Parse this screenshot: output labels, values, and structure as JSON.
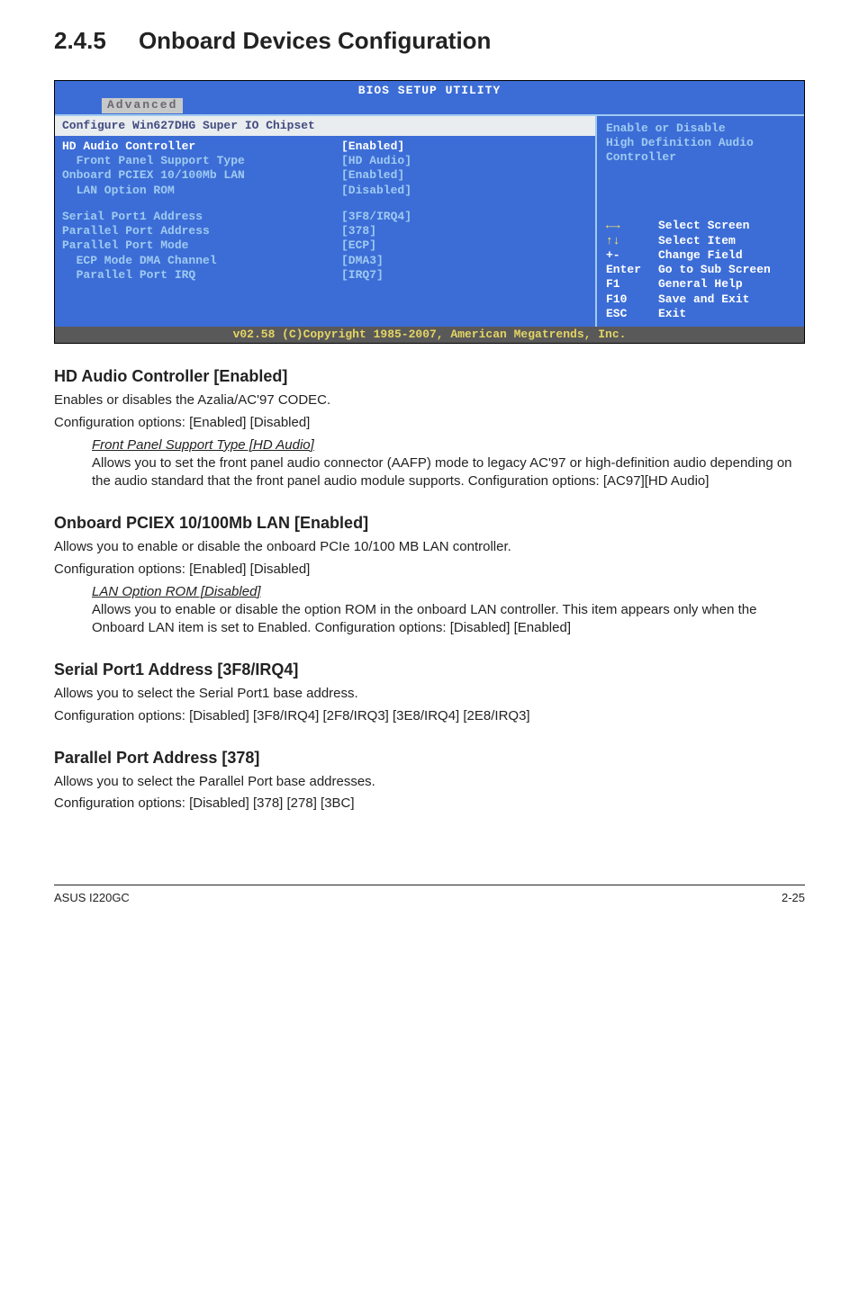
{
  "section": {
    "number": "2.4.5",
    "title": "Onboard Devices Configuration"
  },
  "bios": {
    "header_title": "BIOS SETUP UTILITY",
    "tab_label": "Advanced",
    "chipset_line": "Configure Win627DHG Super IO Chipset",
    "rows": [
      {
        "key": "HD Audio Controller",
        "val": "[Enabled]",
        "selected": true,
        "indent": 0
      },
      {
        "key": "Front Panel Support Type",
        "val": "[HD Audio]",
        "selected": false,
        "indent": 1
      },
      {
        "key": "Onboard PCIEX 10/100Mb LAN",
        "val": "[Enabled]",
        "selected": false,
        "indent": 0
      },
      {
        "key": "LAN Option ROM",
        "val": "[Disabled]",
        "selected": false,
        "indent": 1
      }
    ],
    "rows2": [
      {
        "key": "Serial Port1 Address",
        "val": "[3F8/IRQ4]",
        "indent": 0
      },
      {
        "key": "Parallel Port Address",
        "val": "[378]",
        "indent": 0
      },
      {
        "key": "Parallel Port Mode",
        "val": "[ECP]",
        "indent": 0
      },
      {
        "key": "ECP Mode DMA Channel",
        "val": "[DMA3]",
        "indent": 1
      },
      {
        "key": "Parallel Port IRQ",
        "val": "[IRQ7]",
        "indent": 1
      }
    ],
    "help_text_1": "Enable or Disable",
    "help_text_2": "High Definition Audio",
    "help_text_3": "Controller",
    "nav": [
      {
        "key_glyph": "lr",
        "action": "Select Screen"
      },
      {
        "key_glyph": "ud",
        "action": "Select Item"
      },
      {
        "key": "+-",
        "action": "Change Field"
      },
      {
        "key": "Enter",
        "action": "Go to Sub Screen"
      },
      {
        "key": "F1",
        "action": "General Help"
      },
      {
        "key": "F10",
        "action": "Save and Exit"
      },
      {
        "key": "ESC",
        "action": "Exit"
      }
    ],
    "footer": "v02.58 (C)Copyright 1985-2007, American Megatrends, Inc."
  },
  "sections": {
    "hd_audio": {
      "heading": "HD Audio Controller [Enabled]",
      "p1": "Enables or disables the Azalia/AC'97 CODEC.",
      "p2": "Configuration options: [Enabled] [Disabled]",
      "sub_title": "Front Panel Support Type [HD Audio]",
      "sub_body": "Allows you to set the front panel audio connector (AAFP) mode to legacy AC'97 or high-definition audio depending on the audio standard that the front panel audio module supports. Configuration options: [AC97][HD Audio]"
    },
    "pciex": {
      "heading": "Onboard PCIEX 10/100Mb LAN [Enabled]",
      "p1": "Allows you to enable or disable the onboard PCIe 10/100 MB LAN controller.",
      "p2": "Configuration options: [Enabled] [Disabled]",
      "sub_title": "LAN Option ROM [Disabled]",
      "sub_body": "Allows you to enable or disable the option ROM in the onboard LAN controller. This item appears only when the Onboard LAN item is set to Enabled. Configuration options: [Disabled] [Enabled]"
    },
    "serial": {
      "heading": "Serial Port1 Address [3F8/IRQ4]",
      "p1": "Allows you to select the Serial Port1 base address.",
      "p2": "Configuration options: [Disabled] [3F8/IRQ4] [2F8/IRQ3] [3E8/IRQ4] [2E8/IRQ3]"
    },
    "parallel": {
      "heading": "Parallel Port Address [378]",
      "p1": "Allows you to select the Parallel Port base addresses.",
      "p2": "Configuration options: [Disabled] [378] [278] [3BC]"
    }
  },
  "footer_left": "ASUS I220GC",
  "footer_right": "2-25"
}
